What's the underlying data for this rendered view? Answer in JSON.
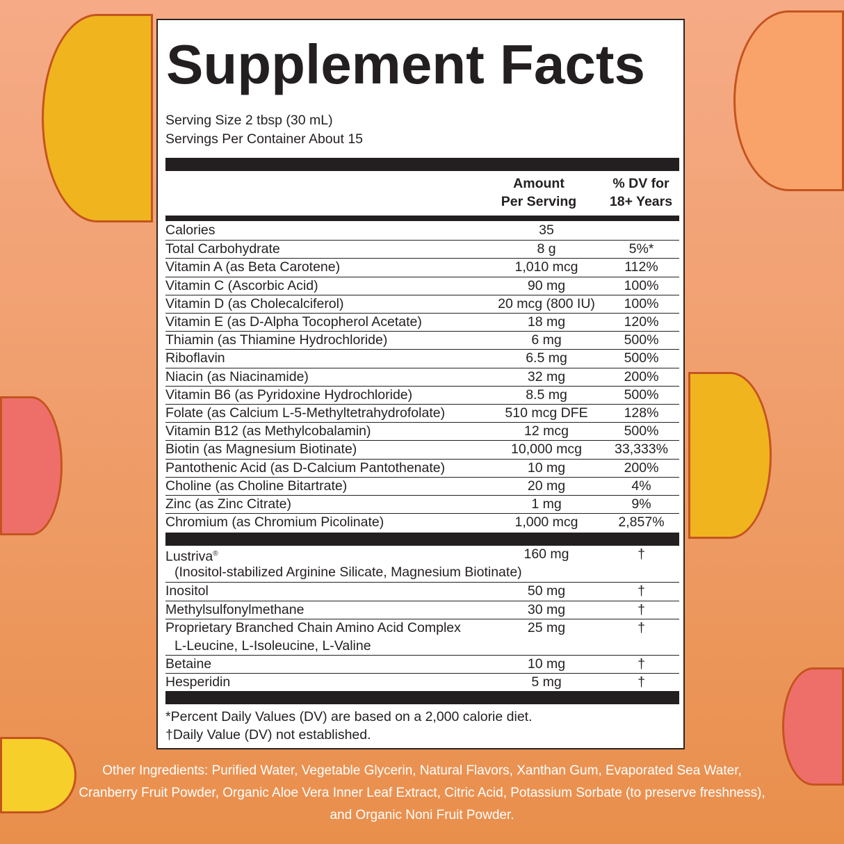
{
  "title": "Supplement Facts",
  "serving_size": "Serving Size 2 tbsp (30 mL)",
  "servings_per_container": "Servings Per Container About 15",
  "header": {
    "amount_l1": "Amount",
    "amount_l2": "Per Serving",
    "dv_l1": "% DV for",
    "dv_l2": "18+ Years"
  },
  "nutrients": [
    {
      "name": "Calories",
      "amount": "35",
      "dv": ""
    },
    {
      "name": "Total Carbohydrate",
      "amount": "8 g",
      "dv": "5%*"
    },
    {
      "name": "Vitamin A (as Beta Carotene)",
      "amount": "1,010 mcg",
      "dv": "112%"
    },
    {
      "name": "Vitamin C (Ascorbic Acid)",
      "amount": "90 mg",
      "dv": "100%"
    },
    {
      "name": "Vitamin D (as Cholecalciferol)",
      "amount": "20 mcg (800 IU)",
      "dv": "100%"
    },
    {
      "name": "Vitamin E (as D-Alpha Tocopherol Acetate)",
      "amount": "18 mg",
      "dv": "120%"
    },
    {
      "name": "Thiamin (as Thiamine Hydrochloride)",
      "amount": "6 mg",
      "dv": "500%"
    },
    {
      "name": "Riboflavin",
      "amount": "6.5 mg",
      "dv": "500%"
    },
    {
      "name": "Niacin (as Niacinamide)",
      "amount": "32 mg",
      "dv": "200%"
    },
    {
      "name": "Vitamin B6 (as Pyridoxine Hydrochloride)",
      "amount": "8.5 mg",
      "dv": "500%"
    },
    {
      "name": "Folate (as Calcium L-5-Methyltetrahydrofolate)",
      "amount": "510 mcg DFE",
      "dv": "128%"
    },
    {
      "name": "Vitamin B12 (as Methylcobalamin)",
      "amount": "12 mcg",
      "dv": "500%"
    },
    {
      "name": "Biotin (as Magnesium Biotinate)",
      "amount": "10,000 mcg",
      "dv": "33,333%"
    },
    {
      "name": "Pantothenic Acid (as D-Calcium Pantothenate)",
      "amount": "10 mg",
      "dv": "200%"
    },
    {
      "name": "Choline (as Choline Bitartrate)",
      "amount": "20 mg",
      "dv": "4%"
    },
    {
      "name": "Zinc (as Zinc Citrate)",
      "amount": "1 mg",
      "dv": "9%"
    },
    {
      "name": "Chromium (as Chromium Picolinate)",
      "amount": "1,000 mcg",
      "dv": "2,857%"
    }
  ],
  "other_actives": [
    {
      "name": "Lustriva",
      "reg": "®",
      "sub": "(Inositol-stabilized Arginine Silicate, Magnesium Biotinate)",
      "amount": "160 mg",
      "dv": "†"
    },
    {
      "name": "Inositol",
      "amount": "50 mg",
      "dv": "†"
    },
    {
      "name": "Methylsulfonylmethane",
      "amount": "30 mg",
      "dv": "†"
    },
    {
      "name": "Proprietary Branched Chain Amino Acid Complex",
      "sub": "L-Leucine, L-Isoleucine, L-Valine",
      "amount": "25 mg",
      "dv": "†"
    },
    {
      "name": "Betaine",
      "amount": "10 mg",
      "dv": "†"
    },
    {
      "name": "Hesperidin",
      "amount": "5 mg",
      "dv": "†"
    }
  ],
  "footnotes": [
    "*Percent Daily Values (DV) are based on a 2,000 calorie diet.",
    "†Daily Value (DV) not established."
  ],
  "other_ingredients": "Other Ingredients: Purified Water, Vegetable Glycerin, Natural Flavors, Xanthan Gum, Evaporated Sea Water, Cranberry Fruit Powder, Organic Aloe Vera Inner Leaf Extract, Citric Acid, Potassium Sorbate (to preserve freshness), and Organic Noni Fruit Powder.",
  "colors": {
    "ink": "#231f20",
    "bg_top": "#f6ab86",
    "bg_bottom": "#e98f4c",
    "mango": "#f0b51e",
    "peach": "#ee6f6a"
  }
}
